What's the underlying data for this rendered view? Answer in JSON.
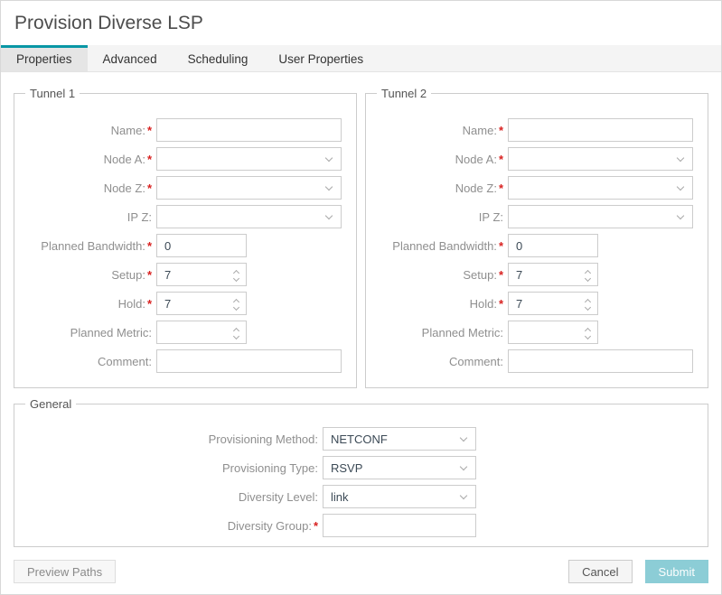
{
  "title": "Provision Diverse LSP",
  "required_marker": "*",
  "colors": {
    "accent": "#0897a5",
    "submit_bg": "#8ccdd6"
  },
  "tabs": {
    "properties": "Properties",
    "advanced": "Advanced",
    "scheduling": "Scheduling",
    "user_properties": "User Properties"
  },
  "tunnel1": {
    "legend": "Tunnel 1",
    "name": {
      "label": "Name:",
      "value": ""
    },
    "node_a": {
      "label": "Node A:",
      "value": ""
    },
    "node_z": {
      "label": "Node Z:",
      "value": ""
    },
    "ip_z": {
      "label": "IP Z:",
      "value": ""
    },
    "planned_bandwidth": {
      "label": "Planned Bandwidth:",
      "value": "0"
    },
    "setup": {
      "label": "Setup:",
      "value": "7"
    },
    "hold": {
      "label": "Hold:",
      "value": "7"
    },
    "planned_metric": {
      "label": "Planned Metric:",
      "value": ""
    },
    "comment": {
      "label": "Comment:",
      "value": ""
    }
  },
  "tunnel2": {
    "legend": "Tunnel 2",
    "name": {
      "label": "Name:",
      "value": ""
    },
    "node_a": {
      "label": "Node A:",
      "value": ""
    },
    "node_z": {
      "label": "Node Z:",
      "value": ""
    },
    "ip_z": {
      "label": "IP Z:",
      "value": ""
    },
    "planned_bandwidth": {
      "label": "Planned Bandwidth:",
      "value": "0"
    },
    "setup": {
      "label": "Setup:",
      "value": "7"
    },
    "hold": {
      "label": "Hold:",
      "value": "7"
    },
    "planned_metric": {
      "label": "Planned Metric:",
      "value": ""
    },
    "comment": {
      "label": "Comment:",
      "value": ""
    }
  },
  "general": {
    "legend": "General",
    "provisioning_method": {
      "label": "Provisioning Method:",
      "value": "NETCONF"
    },
    "provisioning_type": {
      "label": "Provisioning Type:",
      "value": "RSVP"
    },
    "diversity_level": {
      "label": "Diversity Level:",
      "value": "link"
    },
    "diversity_group": {
      "label": "Diversity Group:",
      "value": ""
    }
  },
  "footer": {
    "preview_paths": "Preview Paths",
    "cancel": "Cancel",
    "submit": "Submit"
  }
}
